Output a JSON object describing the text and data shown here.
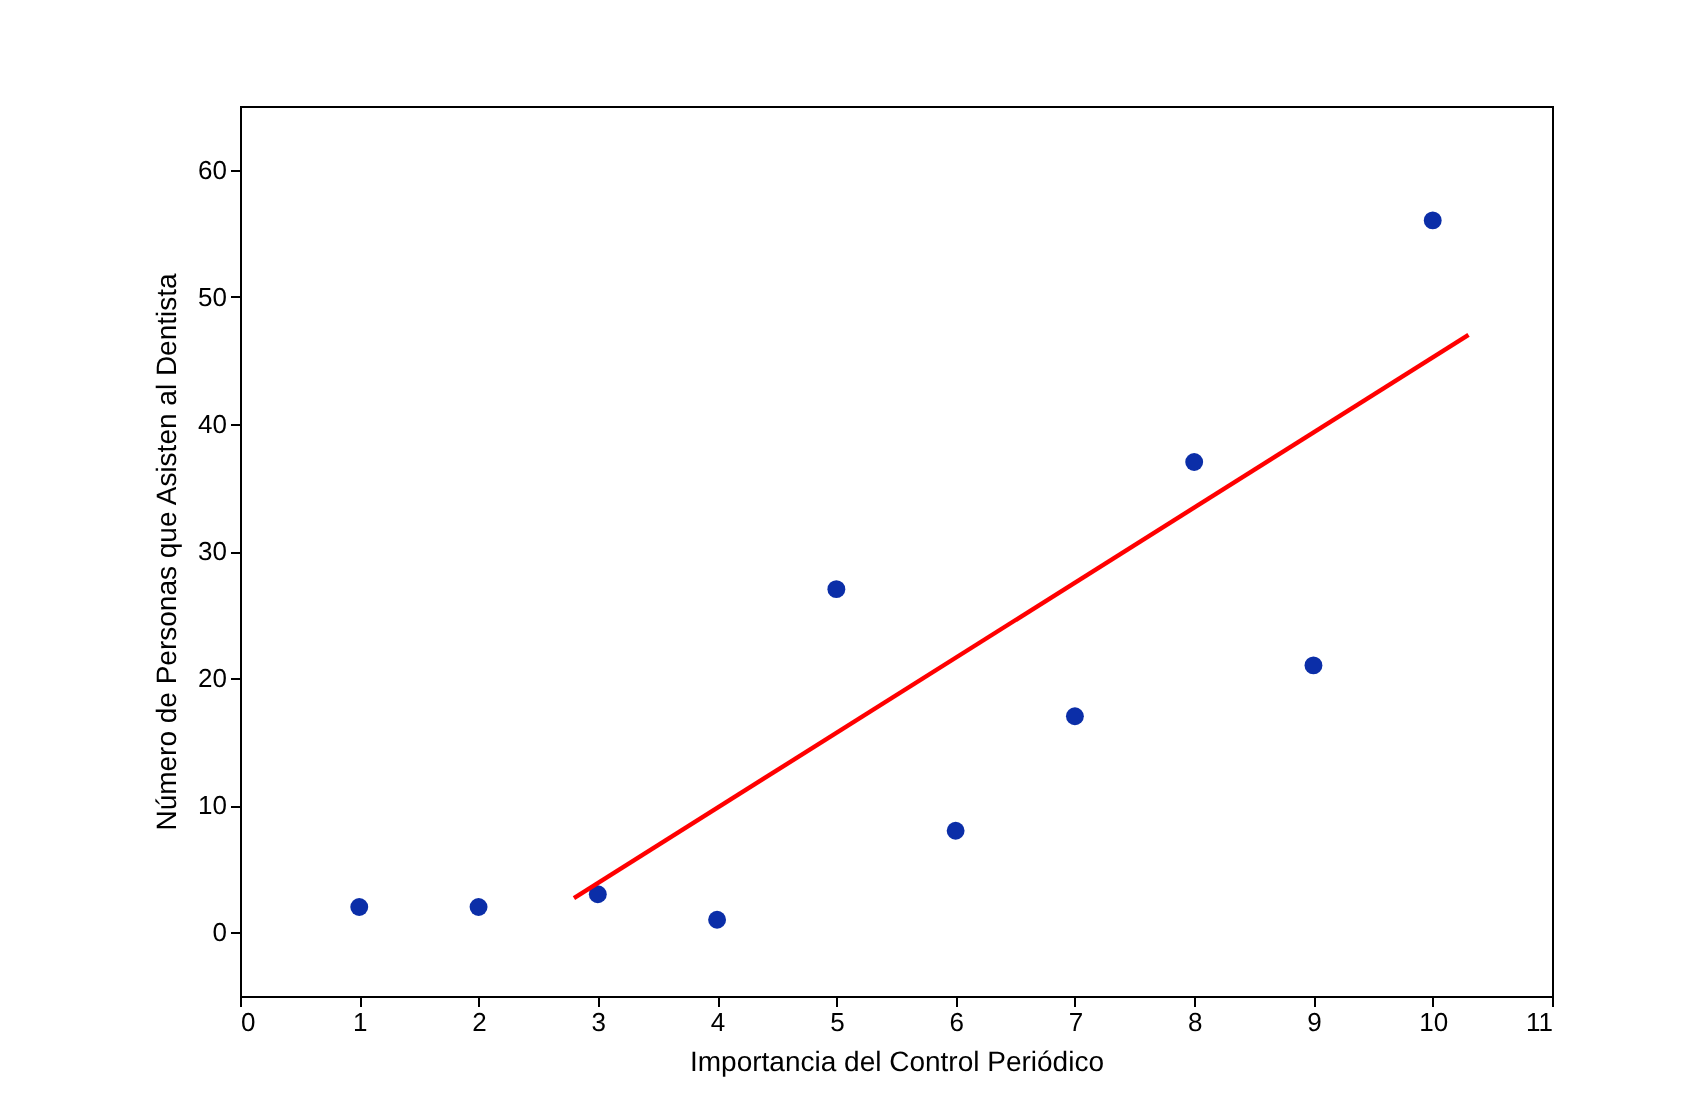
{
  "chart_data": {
    "type": "scatter",
    "xlabel": "Importancia del Control Periódico",
    "ylabel": "Número de Personas que Asisten al Dentista",
    "x": [
      1,
      2,
      3,
      4,
      5,
      6,
      7,
      8,
      9,
      10
    ],
    "series": [
      {
        "color": "#0b2ea8",
        "marker": "circle",
        "values": [
          2,
          2,
          3,
          1,
          27,
          8,
          17,
          37,
          21,
          56
        ]
      },
      {
        "type": "line",
        "marker": "none",
        "color": "#ff0000",
        "x": [
          2.8,
          10.3
        ],
        "values": [
          2.7,
          47
        ]
      }
    ],
    "xlim": [
      0,
      11
    ],
    "xticks": [
      0,
      1,
      2,
      3,
      4,
      5,
      6,
      7,
      8,
      9,
      10,
      11
    ],
    "ylim": [
      -5,
      65
    ],
    "yticks": [
      0,
      10,
      20,
      30,
      40,
      50,
      60
    ],
    "line_style": "solid"
  }
}
